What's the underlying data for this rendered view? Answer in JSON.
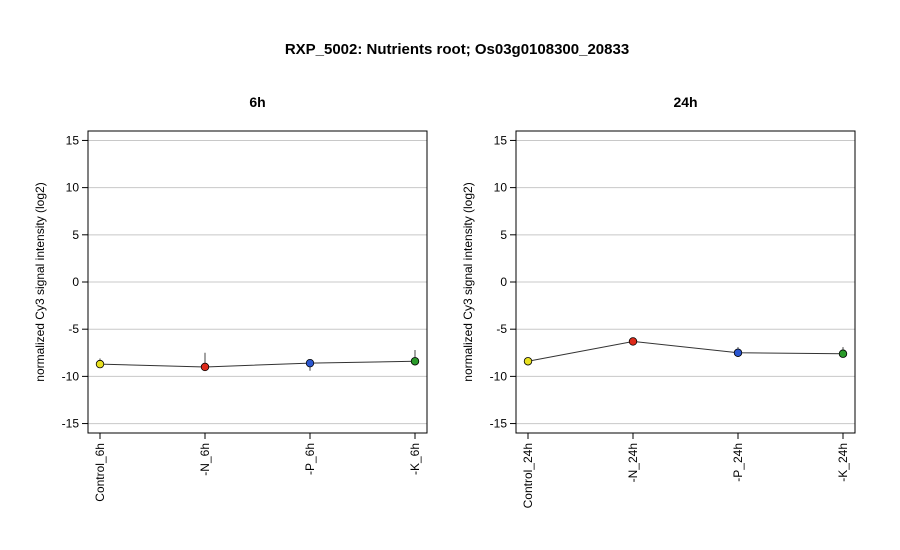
{
  "chart_data": {
    "title": "RXP_5002: Nutrients root; Os03g0108300_20833",
    "panels": [
      {
        "type": "line",
        "title": "6h",
        "ylabel": "normalized Cy3 signal intensity (log2)",
        "ylim": [
          -16,
          16
        ],
        "yticks": [
          15,
          10,
          5,
          0,
          -5,
          -10,
          -15
        ],
        "grid": true,
        "categories": [
          "Control_6h",
          "-N_6h",
          "-P_6h",
          "-K_6h"
        ],
        "values": [
          -8.7,
          -9.0,
          -8.6,
          -8.4
        ],
        "err_low": [
          -9.1,
          -9.2,
          -9.4,
          -8.8
        ],
        "err_high": [
          -8.1,
          -7.5,
          -8.4,
          -7.2
        ],
        "colors": [
          "#e8e020",
          "#dd2a1a",
          "#2a56d0",
          "#2a9a2a"
        ]
      },
      {
        "type": "line",
        "title": "24h",
        "ylabel": "normalized Cy3 signal intensity (log2)",
        "ylim": [
          -16,
          16
        ],
        "yticks": [
          15,
          10,
          5,
          0,
          -5,
          -10,
          -15
        ],
        "grid": true,
        "categories": [
          "Control_24h",
          "-N_24h",
          "-P_24h",
          "-K_24h"
        ],
        "values": [
          -8.4,
          -6.3,
          -7.5,
          -7.6
        ],
        "err_low": [
          -8.7,
          -6.6,
          -7.9,
          -7.9
        ],
        "err_high": [
          -8.0,
          -6.0,
          -6.9,
          -6.9
        ],
        "colors": [
          "#e8e020",
          "#dd2a1a",
          "#2a56d0",
          "#2a9a2a"
        ]
      }
    ]
  }
}
